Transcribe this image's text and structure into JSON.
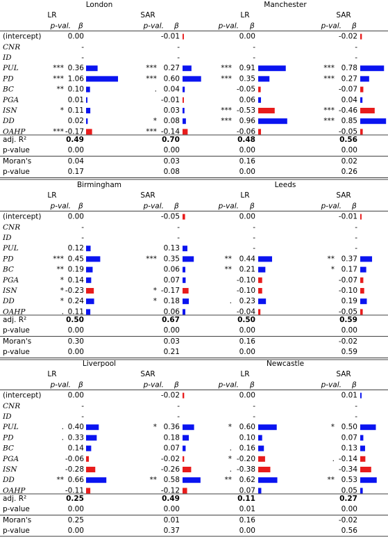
{
  "row_labels": [
    "(intercept)",
    "CNR",
    "ID",
    "PUL",
    "PD",
    "BC",
    "PGA",
    "ISN",
    "DD",
    "OAHP"
  ],
  "stat_labels": [
    "adj. R²",
    "p-value",
    "Moran's",
    "p-value"
  ],
  "model_header": {
    "sig": "p-val.",
    "beta": "β"
  },
  "panels": [
    {
      "cities": [
        {
          "name": "London",
          "models": [
            {
              "name": "LR",
              "sig": [
                null,
                null,
                null,
                "***",
                "***",
                "**",
                null,
                "*",
                null,
                "***"
              ],
              "beta": [
                "0.00",
                "-",
                "-",
                "0.36",
                "1.06",
                "0.10",
                "0.01",
                "0.11",
                "0.02",
                "-0.17"
              ],
              "stats": [
                "0.49",
                "0.00",
                "0.04",
                "0.17"
              ]
            },
            {
              "name": "SAR",
              "sig": [
                null,
                null,
                null,
                "***",
                "***",
                ".",
                null,
                null,
                "*",
                "***"
              ],
              "beta": [
                "-0.01",
                "-",
                "-",
                "0.27",
                "0.60",
                "0.04",
                "-0.01",
                "0.03",
                "0.08",
                "-0.14"
              ],
              "stats": [
                "0.70",
                "0.00",
                "0.03",
                "0.08"
              ]
            }
          ]
        },
        {
          "name": "Manchester",
          "models": [
            {
              "name": "LR",
              "sig": [
                null,
                null,
                null,
                "***",
                "***",
                null,
                null,
                "***",
                "***",
                null
              ],
              "beta": [
                "0.00",
                "-",
                "-",
                "0.91",
                "0.35",
                "-0.05",
                "0.06",
                "-0.53",
                "0.96",
                "-0.06"
              ],
              "stats": [
                "0.48",
                "0.00",
                "0.16",
                "0.00"
              ]
            },
            {
              "name": "SAR",
              "sig": [
                null,
                null,
                null,
                "***",
                "***",
                null,
                null,
                "***",
                "***",
                null
              ],
              "beta": [
                "-0.02",
                "-",
                "-",
                "0.78",
                "0.27",
                "-0.07",
                "0.04",
                "-0.46",
                "0.85",
                "-0.05"
              ],
              "stats": [
                "0.56",
                "0.00",
                "0.02",
                "0.26"
              ]
            }
          ]
        }
      ]
    },
    {
      "cities": [
        {
          "name": "Birmingham",
          "models": [
            {
              "name": "LR",
              "sig": [
                null,
                null,
                null,
                null,
                "***",
                "**",
                "*",
                "*",
                "*",
                "."
              ],
              "beta": [
                "0.00",
                "-",
                "-",
                "0.12",
                "0.45",
                "0.19",
                "0.14",
                "-0.23",
                "0.24",
                "0.11"
              ],
              "stats": [
                "0.50",
                "0.00",
                "0.30",
                "0.00"
              ]
            },
            {
              "name": "SAR",
              "sig": [
                null,
                null,
                null,
                null,
                "***",
                null,
                null,
                "*",
                "*",
                null
              ],
              "beta": [
                "-0.05",
                "-",
                "-",
                "0.13",
                "0.35",
                "0.06",
                "0.07",
                "-0.17",
                "0.18",
                "0.06"
              ],
              "stats": [
                "0.67",
                "0.00",
                "0.03",
                "0.21"
              ]
            }
          ]
        },
        {
          "name": "Leeds",
          "models": [
            {
              "name": "LR",
              "sig": [
                null,
                null,
                null,
                null,
                "**",
                "**",
                null,
                null,
                ".",
                null
              ],
              "beta": [
                "0.00",
                "-",
                "-",
                "-",
                "0.44",
                "0.21",
                "-0.10",
                "-0.10",
                "0.23",
                "-0.04"
              ],
              "stats": [
                "0.50",
                "0.00",
                "0.16",
                "0.00"
              ]
            },
            {
              "name": "SAR",
              "sig": [
                null,
                null,
                null,
                null,
                "**",
                "*",
                null,
                null,
                null,
                null
              ],
              "beta": [
                "-0.01",
                "-",
                "-",
                "-",
                "0.37",
                "0.17",
                "-0.07",
                "-0.10",
                "0.19",
                "-0.05"
              ],
              "stats": [
                "0.59",
                "0.00",
                "-0.02",
                "0.59"
              ]
            }
          ]
        }
      ]
    },
    {
      "cities": [
        {
          "name": "Liverpool",
          "models": [
            {
              "name": "LR",
              "sig": [
                null,
                null,
                null,
                ".",
                ".",
                null,
                null,
                null,
                "**",
                null
              ],
              "beta": [
                "0.00",
                "-",
                "-",
                "0.40",
                "0.33",
                "0.14",
                "-0.06",
                "-0.28",
                "0.66",
                "-0.11"
              ],
              "stats": [
                "0.25",
                "0.00",
                "0.25",
                "0.00"
              ]
            },
            {
              "name": "SAR",
              "sig": [
                null,
                null,
                null,
                "*",
                null,
                null,
                null,
                null,
                "**",
                null
              ],
              "beta": [
                "-0.02",
                "-",
                "-",
                "0.36",
                "0.18",
                "0.07",
                "-0.02",
                "-0.26",
                "0.58",
                "-0.12"
              ],
              "stats": [
                "0.49",
                "0.00",
                "0.01",
                "0.37"
              ]
            }
          ]
        },
        {
          "name": "Newcastle",
          "models": [
            {
              "name": "LR",
              "sig": [
                null,
                null,
                null,
                "*",
                null,
                ".",
                "*",
                ".",
                "**",
                null
              ],
              "beta": [
                "0.00",
                "-",
                "-",
                "0.60",
                "0.10",
                "0.16",
                "-0.20",
                "-0.38",
                "0.62",
                "0.07"
              ],
              "stats": [
                "0.11",
                "0.01",
                "0.16",
                "0.00"
              ]
            },
            {
              "name": "SAR",
              "sig": [
                null,
                null,
                null,
                "*",
                null,
                null,
                ".",
                null,
                "**",
                null
              ],
              "beta": [
                "0.01",
                "-",
                "-",
                "0.50",
                "0.07",
                "0.13",
                "-0.14",
                "-0.34",
                "0.53",
                "0.05"
              ],
              "stats": [
                "0.27",
                "0.00",
                "-0.02",
                "0.56"
              ]
            }
          ]
        }
      ]
    }
  ]
}
